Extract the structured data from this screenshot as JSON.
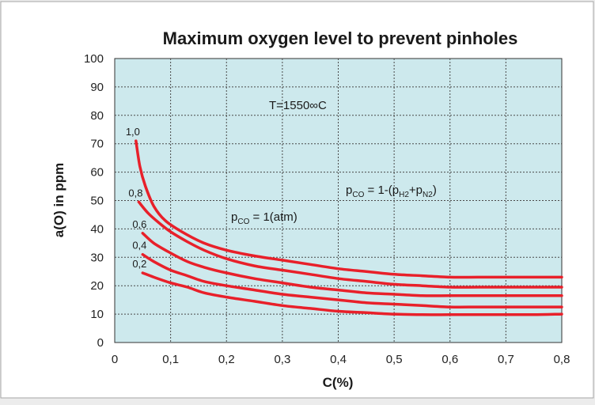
{
  "chart_data": {
    "type": "line",
    "title": "Maximum oxygen level to prevent pinholes",
    "xlabel": "C(%)",
    "ylabel": "a(O) in ppm",
    "xlim": [
      0,
      0.8
    ],
    "ylim": [
      0,
      100
    ],
    "x_ticks": [
      "0",
      "0,1",
      "0,2",
      "0,3",
      "0,4",
      "0,5",
      "0,6",
      "0,7",
      "0,8"
    ],
    "y_ticks": [
      "0",
      "10",
      "20",
      "30",
      "40",
      "50",
      "60",
      "70",
      "80",
      "90",
      "100"
    ],
    "grid": true,
    "annotations": {
      "temperature": "T=1550∞C",
      "pco_formula": {
        "p": "p",
        "co_sub": "CO",
        "mid": " = 1-(p",
        "h2_sub": "H2",
        "plus": "+p",
        "n2_sub": "N2",
        "end": ")"
      },
      "pco_atm": {
        "p": "p",
        "co_sub": "CO",
        "rest": " = 1(atm)"
      }
    },
    "series": [
      {
        "name": "1,0",
        "x": [
          0.038,
          0.045,
          0.055,
          0.07,
          0.09,
          0.12,
          0.16,
          0.2,
          0.25,
          0.3,
          0.35,
          0.4,
          0.45,
          0.5,
          0.55,
          0.6,
          0.65,
          0.7,
          0.75,
          0.8
        ],
        "y": [
          71,
          62,
          55,
          48,
          43,
          39,
          35,
          32.5,
          30.5,
          29,
          27.5,
          26,
          25,
          24,
          23.5,
          23,
          23,
          23,
          23,
          23
        ]
      },
      {
        "name": "0,8",
        "x": [
          0.043,
          0.06,
          0.08,
          0.1,
          0.13,
          0.16,
          0.2,
          0.25,
          0.3,
          0.35,
          0.4,
          0.45,
          0.5,
          0.55,
          0.6,
          0.65,
          0.7,
          0.75,
          0.8
        ],
        "y": [
          49.5,
          45.5,
          42,
          39,
          35.5,
          32.5,
          29.5,
          27,
          25.5,
          24,
          22.5,
          21.5,
          20.5,
          20,
          19.5,
          19.5,
          19.5,
          19.5,
          19.5
        ]
      },
      {
        "name": "0,6",
        "x": [
          0.05,
          0.07,
          0.1,
          0.13,
          0.16,
          0.2,
          0.25,
          0.3,
          0.35,
          0.4,
          0.45,
          0.5,
          0.55,
          0.6,
          0.65,
          0.7,
          0.75,
          0.8
        ],
        "y": [
          38.5,
          35,
          31.5,
          28.5,
          26.5,
          24.5,
          22.5,
          21,
          19.5,
          18.5,
          17.5,
          17,
          16.5,
          16.5,
          16.5,
          16.5,
          16.5,
          16.5
        ]
      },
      {
        "name": "0,4",
        "x": [
          0.05,
          0.07,
          0.1,
          0.13,
          0.16,
          0.2,
          0.25,
          0.3,
          0.35,
          0.4,
          0.45,
          0.5,
          0.55,
          0.6,
          0.65,
          0.7,
          0.75,
          0.8
        ],
        "y": [
          31,
          28.5,
          25.5,
          23.5,
          21.5,
          20,
          18.5,
          17,
          16,
          15,
          14,
          13.5,
          13,
          12.5,
          12.5,
          12.5,
          12.5,
          12.5
        ]
      },
      {
        "name": "0,2",
        "x": [
          0.05,
          0.07,
          0.1,
          0.13,
          0.16,
          0.2,
          0.25,
          0.3,
          0.35,
          0.4,
          0.45,
          0.5,
          0.55,
          0.6,
          0.65,
          0.7,
          0.75,
          0.8
        ],
        "y": [
          24.5,
          23,
          21,
          19.5,
          17.5,
          16,
          14.5,
          13,
          12,
          11,
          10.5,
          10,
          9.8,
          9.8,
          9.8,
          9.8,
          9.8,
          10
        ]
      }
    ],
    "series_color": "#e8202a",
    "plot_background": "#cde9ed"
  }
}
